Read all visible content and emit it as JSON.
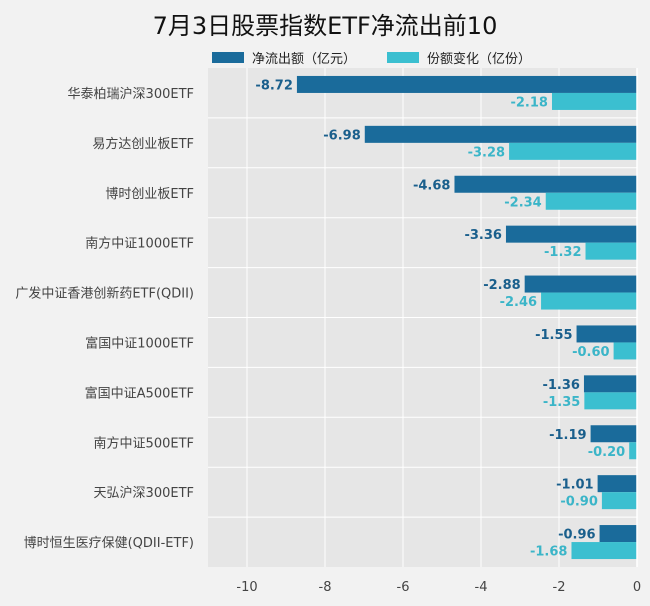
{
  "chart_data": {
    "type": "bar",
    "orientation": "horizontal",
    "title": "7月3日股票指数ETF净流出前10",
    "categories": [
      "华泰柏瑞沪深300ETF",
      "易方达创业板ETF",
      "博时创业板ETF",
      "南方中证1000ETF",
      "广发中证香港创新药ETF(QDII)",
      "富国中证1000ETF",
      "富国中证A500ETF",
      "南方中证500ETF",
      "天弘沪深300ETF",
      "博时恒生医疗保健(QDII-ETF)"
    ],
    "series": [
      {
        "name": "净流出额（亿元）",
        "color": "#1a6b9b",
        "label_color": "#1a5f8c",
        "values": [
          -8.72,
          -6.98,
          -4.68,
          -3.36,
          -2.88,
          -1.55,
          -1.36,
          -1.19,
          -1.01,
          -0.96
        ]
      },
      {
        "name": "份额变化（亿份）",
        "color": "#3bbfd0",
        "label_color": "#3bb5c8",
        "values": [
          -2.18,
          -3.28,
          -2.34,
          -1.32,
          -2.46,
          -0.6,
          -1.35,
          -0.2,
          -0.9,
          -1.68
        ]
      }
    ],
    "xlim": [
      -11,
      0
    ],
    "xticks": [
      -10,
      -8,
      -6,
      -4,
      -2,
      0
    ],
    "grid": true,
    "legend_position": "top"
  }
}
